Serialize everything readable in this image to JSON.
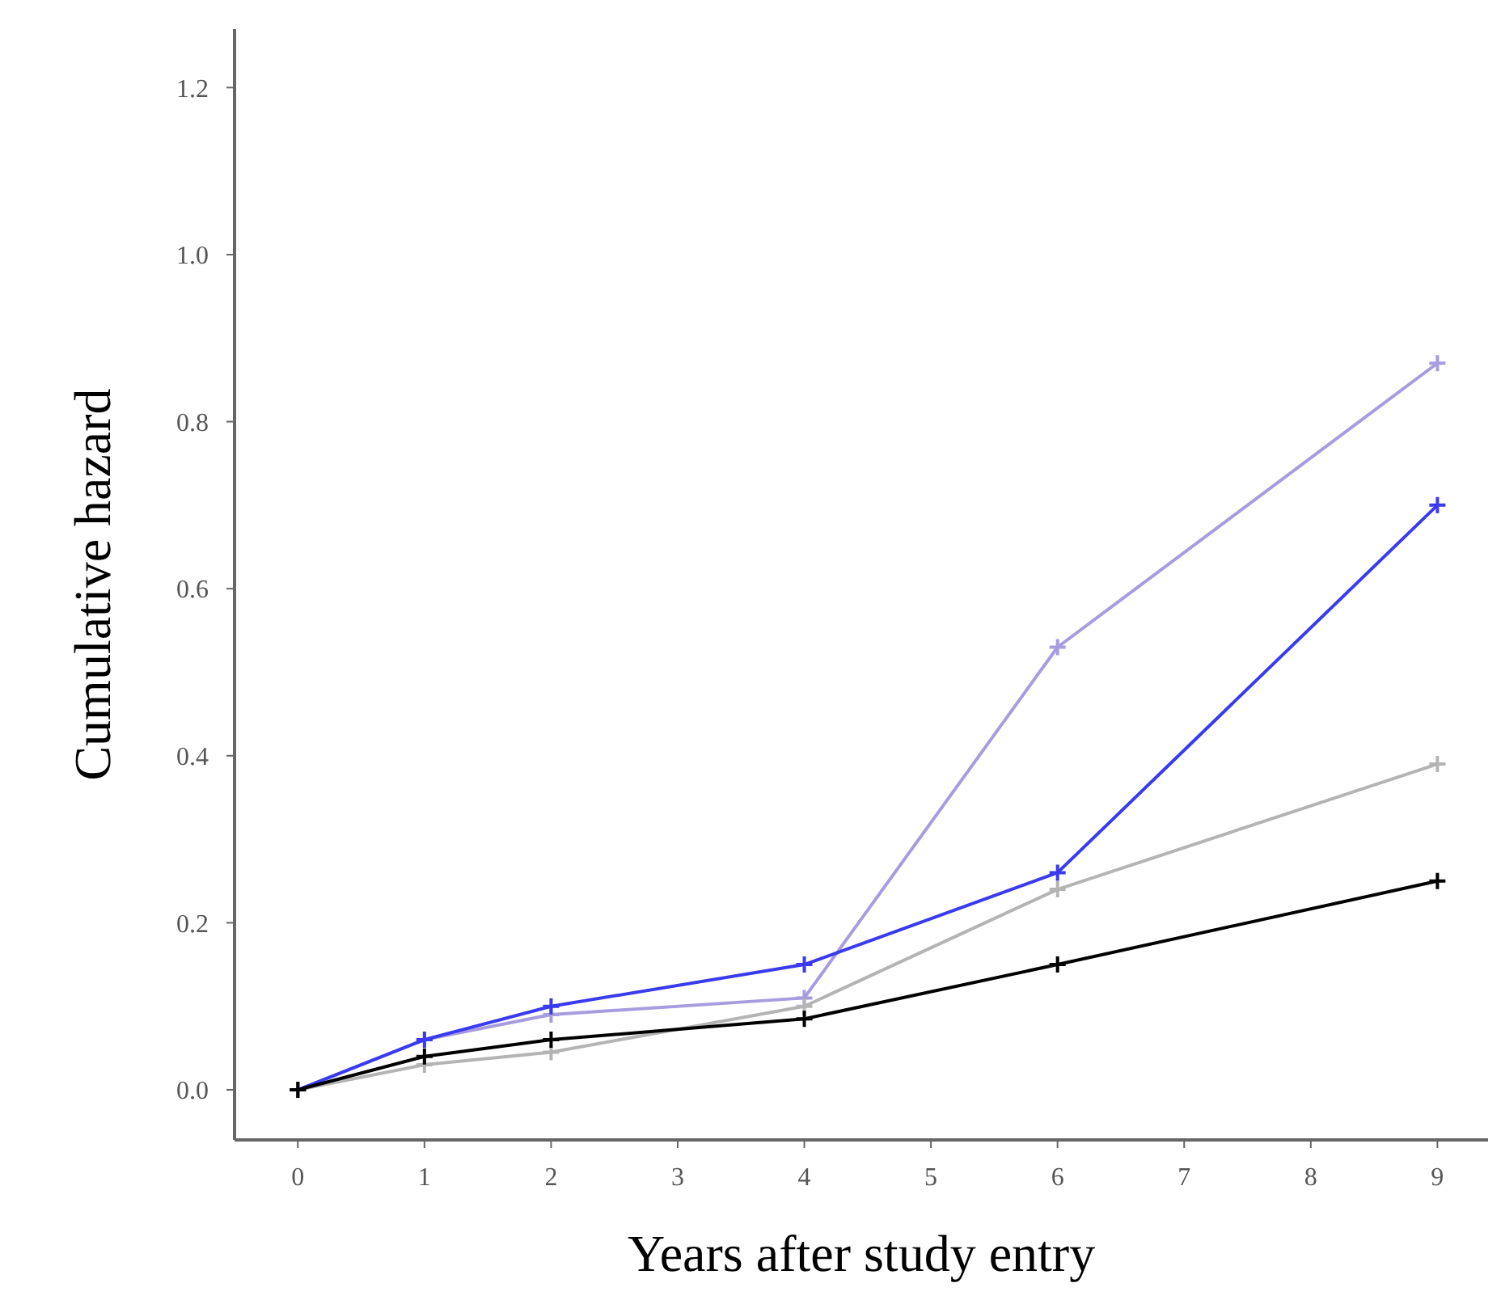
{
  "chart_data": {
    "type": "line",
    "xlabel": "Years after study entry",
    "ylabel": "Cumulative hazard",
    "x": [
      0,
      1,
      2,
      4,
      6,
      9
    ],
    "xlim": [
      -0.5,
      9.4
    ],
    "xticks": [
      0,
      1,
      2,
      3,
      4,
      5,
      6,
      7,
      8,
      9
    ],
    "ylim": [
      -0.06,
      1.27
    ],
    "yticks": [
      {
        "value": 0,
        "label": "0.0"
      },
      {
        "value": 0.2,
        "label": "0.2"
      },
      {
        "value": 0.4,
        "label": "0.4"
      },
      {
        "value": 0.6,
        "label": "0.6"
      },
      {
        "value": 0.8,
        "label": "0.8"
      },
      {
        "value": 1,
        "label": "1.0"
      },
      {
        "value": 1.2,
        "label": "1.2"
      }
    ],
    "grid": false,
    "marker": "cross",
    "line_style": "solid",
    "series": [
      {
        "color": "#a89ce0",
        "values": [
          0,
          0.06,
          0.09,
          0.11,
          0.53,
          0.87
        ]
      },
      {
        "color": "#3a3af0",
        "values": [
          0,
          0.06,
          0.1,
          0.15,
          0.26,
          0.7
        ]
      },
      {
        "color": "#b4b4b4",
        "values": [
          0,
          0.03,
          0.045,
          0.1,
          0.24,
          0.39
        ]
      },
      {
        "color": "#000000",
        "values": [
          0,
          0.04,
          0.06,
          0.085,
          0.15,
          0.25
        ]
      }
    ]
  }
}
